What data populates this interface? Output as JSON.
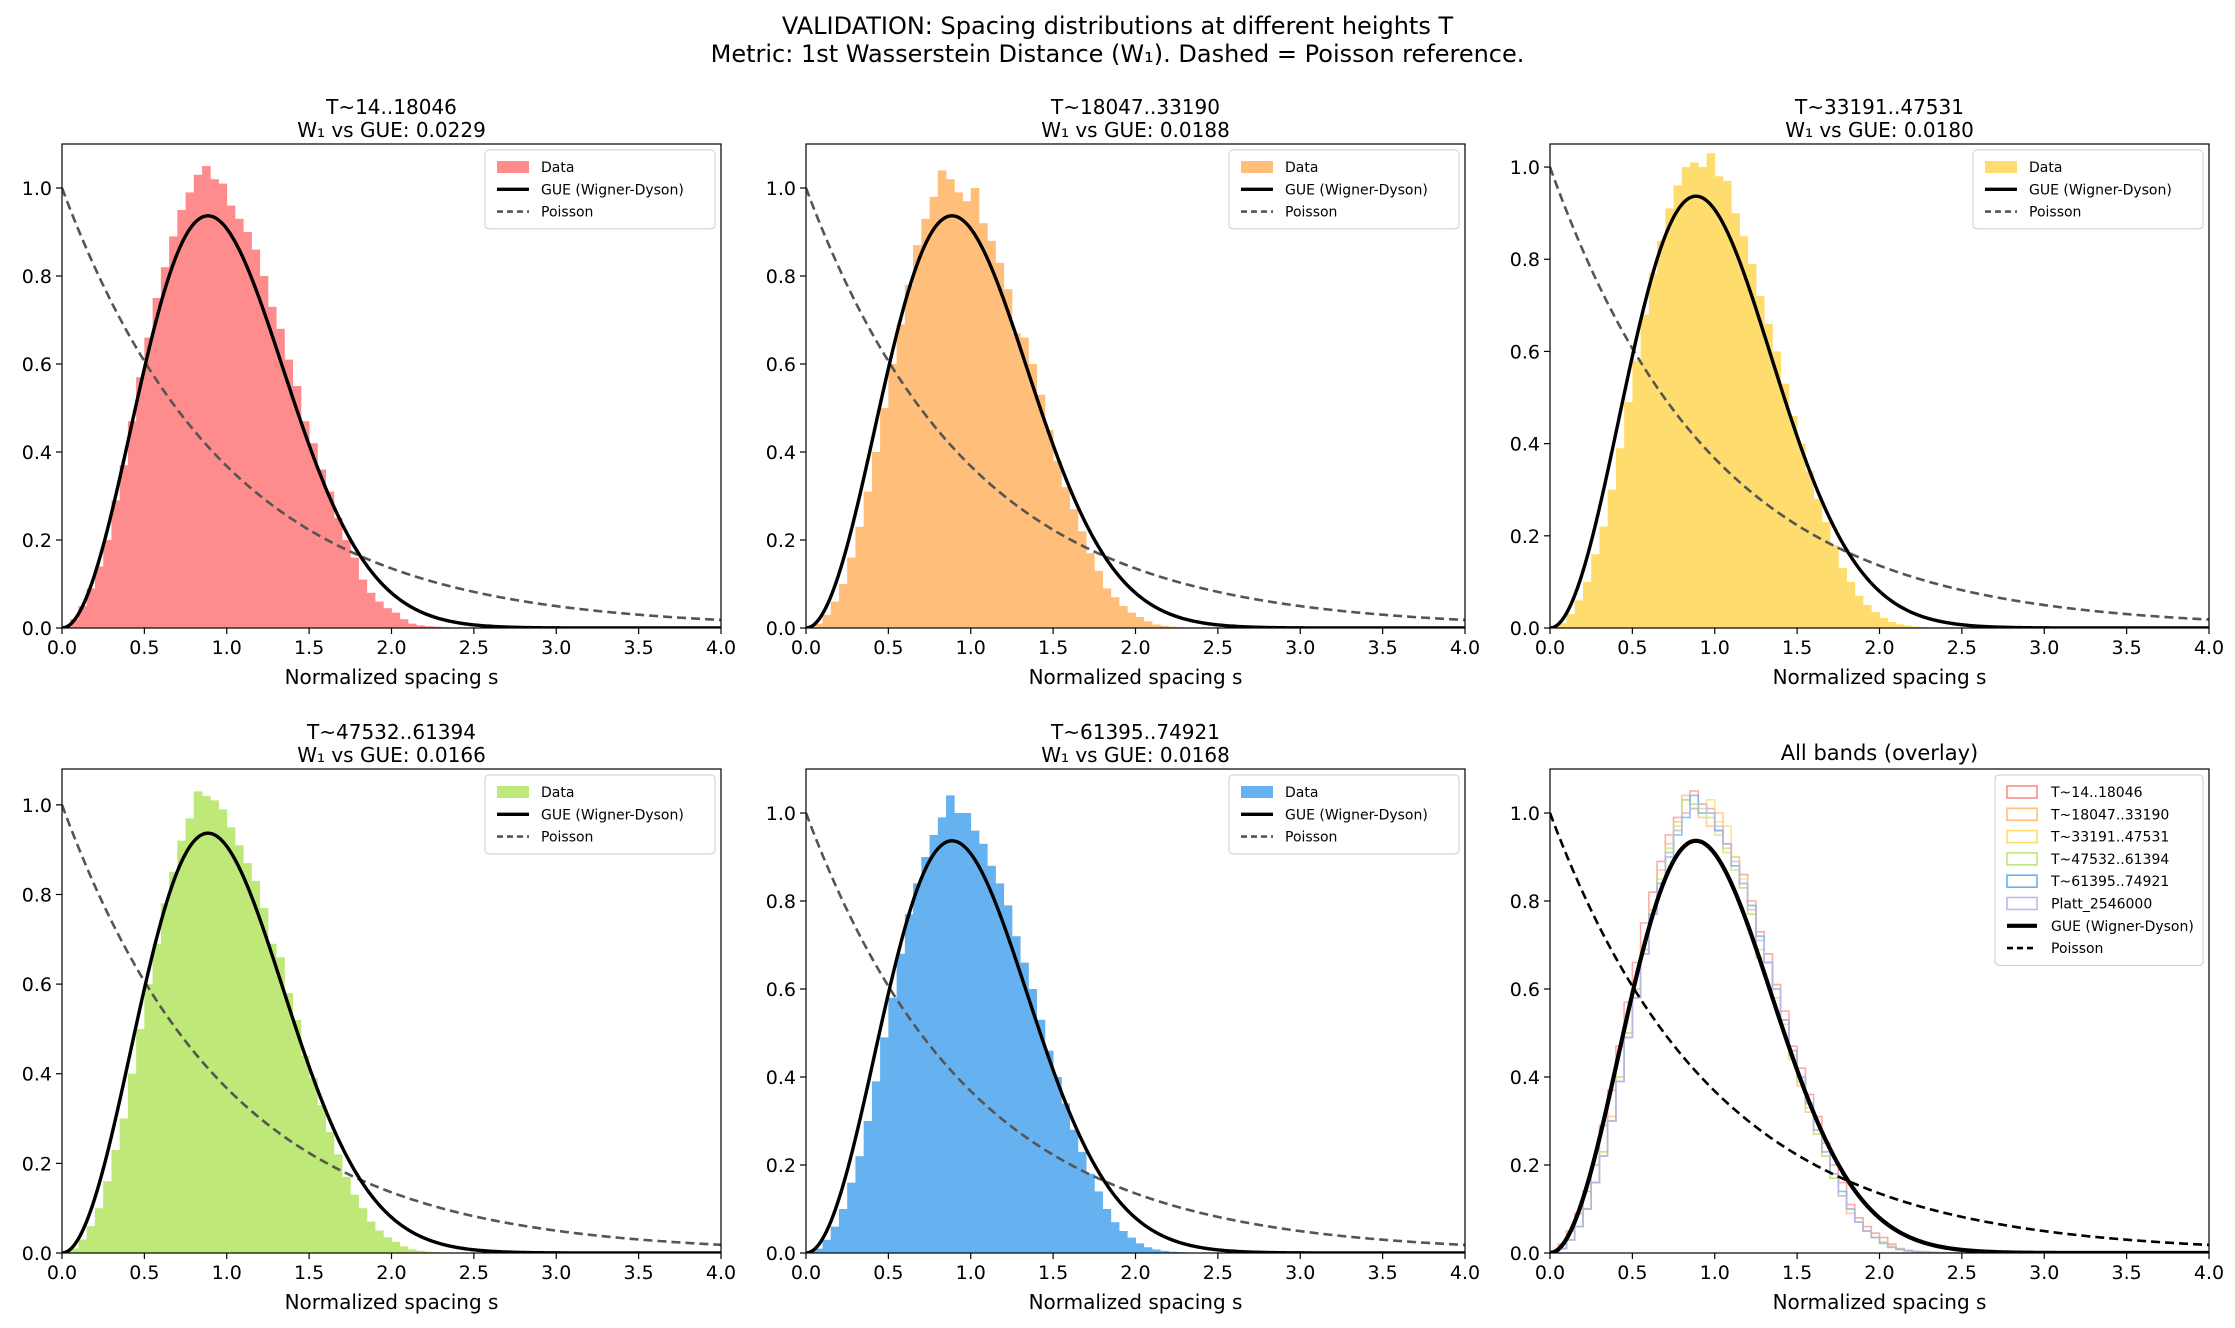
{
  "figure": {
    "suptitle_line1": "VALIDATION: Spacing distributions at different heights T",
    "suptitle_line2": "Metric: 1st Wasserstein Distance (W₁). Dashed = Poisson reference."
  },
  "chart_data": [
    {
      "type": "histogram",
      "title": "T~14..18046",
      "subtitle": "W₁ vs GUE: 0.0229",
      "xlabel": "Normalized spacing s",
      "ylabel": "",
      "xlim": [
        0,
        4
      ],
      "ylim": [
        0,
        1.1
      ],
      "xticks": [
        "0.0",
        "0.5",
        "1.0",
        "1.5",
        "2.0",
        "2.5",
        "3.0",
        "3.5",
        "4.0"
      ],
      "yticks": [
        "0.0",
        "0.2",
        "0.4",
        "0.6",
        "0.8",
        "1.0"
      ],
      "legend": [
        "Data",
        "GUE (Wigner-Dyson)",
        "Poisson"
      ],
      "legend_position": "upper right",
      "color": "#ff8c8c",
      "series": [
        {
          "name": "Data",
          "type": "histogram",
          "bin_width": 0.05,
          "density": [
            0.005,
            0.02,
            0.05,
            0.09,
            0.14,
            0.2,
            0.29,
            0.37,
            0.47,
            0.57,
            0.66,
            0.75,
            0.82,
            0.89,
            0.95,
            0.99,
            1.03,
            1.05,
            1.02,
            1.01,
            0.96,
            0.93,
            0.9,
            0.86,
            0.8,
            0.73,
            0.68,
            0.61,
            0.55,
            0.47,
            0.42,
            0.36,
            0.31,
            0.25,
            0.2,
            0.16,
            0.11,
            0.08,
            0.06,
            0.045,
            0.035,
            0.02,
            0.01,
            0.006,
            0.004,
            0.003,
            0.002,
            0.001,
            0.0,
            0.0
          ]
        },
        {
          "name": "GUE (Wigner-Dyson)",
          "type": "line",
          "formula": "32/pi^2 * s^2 * exp(-4 s^2 / pi)"
        },
        {
          "name": "Poisson",
          "type": "line",
          "formula": "exp(-s)",
          "style": "dashed"
        }
      ]
    },
    {
      "type": "histogram",
      "title": "T~18047..33190",
      "subtitle": "W₁ vs GUE: 0.0188",
      "xlabel": "Normalized spacing s",
      "ylabel": "",
      "xlim": [
        0,
        4
      ],
      "ylim": [
        0,
        1.1
      ],
      "xticks": [
        "0.0",
        "0.5",
        "1.0",
        "1.5",
        "2.0",
        "2.5",
        "3.0",
        "3.5",
        "4.0"
      ],
      "yticks": [
        "0.0",
        "0.2",
        "0.4",
        "0.6",
        "0.8",
        "1.0"
      ],
      "legend": [
        "Data",
        "GUE (Wigner-Dyson)",
        "Poisson"
      ],
      "legend_position": "upper right",
      "color": "#ffbe7a",
      "series": [
        {
          "name": "Data",
          "type": "histogram",
          "bin_width": 0.05,
          "density": [
            0.003,
            0.01,
            0.03,
            0.06,
            0.1,
            0.16,
            0.23,
            0.31,
            0.4,
            0.5,
            0.6,
            0.69,
            0.78,
            0.87,
            0.93,
            0.98,
            1.04,
            1.02,
            0.99,
            0.97,
            1.0,
            0.92,
            0.88,
            0.83,
            0.77,
            0.67,
            0.66,
            0.6,
            0.53,
            0.45,
            0.38,
            0.32,
            0.27,
            0.22,
            0.17,
            0.13,
            0.09,
            0.07,
            0.05,
            0.035,
            0.025,
            0.015,
            0.008,
            0.005,
            0.003,
            0.002,
            0.001,
            0.0,
            0.0,
            0.0
          ]
        },
        {
          "name": "GUE (Wigner-Dyson)",
          "type": "line",
          "formula": "32/pi^2 * s^2 * exp(-4 s^2 / pi)"
        },
        {
          "name": "Poisson",
          "type": "line",
          "formula": "exp(-s)",
          "style": "dashed"
        }
      ]
    },
    {
      "type": "histogram",
      "title": "T~33191..47531",
      "subtitle": "W₁ vs GUE: 0.0180",
      "xlabel": "Normalized spacing s",
      "ylabel": "",
      "xlim": [
        0,
        4
      ],
      "ylim": [
        0,
        1.05
      ],
      "xticks": [
        "0.0",
        "0.5",
        "1.0",
        "1.5",
        "2.0",
        "2.5",
        "3.0",
        "3.5",
        "4.0"
      ],
      "yticks": [
        "0.0",
        "0.2",
        "0.4",
        "0.6",
        "0.8",
        "1.0"
      ],
      "legend": [
        "Data",
        "GUE (Wigner-Dyson)",
        "Poisson"
      ],
      "legend_position": "upper right",
      "color": "#ffdc6e",
      "series": [
        {
          "name": "Data",
          "type": "histogram",
          "bin_width": 0.05,
          "density": [
            0.003,
            0.01,
            0.03,
            0.06,
            0.1,
            0.16,
            0.22,
            0.3,
            0.39,
            0.49,
            0.58,
            0.68,
            0.77,
            0.84,
            0.91,
            0.96,
            1.0,
            1.01,
            1.0,
            1.03,
            0.98,
            0.97,
            0.9,
            0.85,
            0.79,
            0.72,
            0.66,
            0.6,
            0.53,
            0.46,
            0.4,
            0.34,
            0.28,
            0.23,
            0.18,
            0.13,
            0.1,
            0.07,
            0.05,
            0.035,
            0.022,
            0.013,
            0.008,
            0.005,
            0.003,
            0.002,
            0.001,
            0.0,
            0.0,
            0.0
          ]
        },
        {
          "name": "GUE (Wigner-Dyson)",
          "type": "line",
          "formula": "32/pi^2 * s^2 * exp(-4 s^2 / pi)"
        },
        {
          "name": "Poisson",
          "type": "line",
          "formula": "exp(-s)",
          "style": "dashed"
        }
      ]
    },
    {
      "type": "histogram",
      "title": "T~47532..61394",
      "subtitle": "W₁ vs GUE: 0.0166",
      "xlabel": "Normalized spacing s",
      "ylabel": "",
      "xlim": [
        0,
        4
      ],
      "ylim": [
        0,
        1.08
      ],
      "xticks": [
        "0.0",
        "0.5",
        "1.0",
        "1.5",
        "2.0",
        "2.5",
        "3.0",
        "3.5",
        "4.0"
      ],
      "yticks": [
        "0.0",
        "0.2",
        "0.4",
        "0.6",
        "0.8",
        "1.0"
      ],
      "legend": [
        "Data",
        "GUE (Wigner-Dyson)",
        "Poisson"
      ],
      "legend_position": "upper right",
      "color": "#bee878",
      "series": [
        {
          "name": "Data",
          "type": "histogram",
          "bin_width": 0.05,
          "density": [
            0.003,
            0.01,
            0.03,
            0.06,
            0.1,
            0.16,
            0.23,
            0.3,
            0.4,
            0.5,
            0.6,
            0.69,
            0.78,
            0.85,
            0.92,
            0.97,
            1.03,
            1.02,
            1.01,
            0.99,
            0.95,
            0.91,
            0.87,
            0.83,
            0.77,
            0.69,
            0.66,
            0.58,
            0.52,
            0.44,
            0.39,
            0.33,
            0.27,
            0.22,
            0.17,
            0.13,
            0.1,
            0.07,
            0.05,
            0.035,
            0.025,
            0.015,
            0.008,
            0.005,
            0.003,
            0.002,
            0.001,
            0.0,
            0.0,
            0.0
          ]
        },
        {
          "name": "GUE (Wigner-Dyson)",
          "type": "line",
          "formula": "32/pi^2 * s^2 * exp(-4 s^2 / pi)"
        },
        {
          "name": "Poisson",
          "type": "line",
          "formula": "exp(-s)",
          "style": "dashed"
        }
      ]
    },
    {
      "type": "histogram",
      "title": "T~61395..74921",
      "subtitle": "W₁ vs GUE: 0.0168",
      "xlabel": "Normalized spacing s",
      "ylabel": "",
      "xlim": [
        0,
        4
      ],
      "ylim": [
        0,
        1.1
      ],
      "xticks": [
        "0.0",
        "0.5",
        "1.0",
        "1.5",
        "2.0",
        "2.5",
        "3.0",
        "3.5",
        "4.0"
      ],
      "yticks": [
        "0.0",
        "0.2",
        "0.4",
        "0.6",
        "0.8",
        "1.0"
      ],
      "legend": [
        "Data",
        "GUE (Wigner-Dyson)",
        "Poisson"
      ],
      "legend_position": "upper right",
      "color": "#66b2f0",
      "series": [
        {
          "name": "Data",
          "type": "histogram",
          "bin_width": 0.05,
          "density": [
            0.003,
            0.01,
            0.03,
            0.06,
            0.1,
            0.16,
            0.22,
            0.3,
            0.39,
            0.49,
            0.58,
            0.68,
            0.77,
            0.84,
            0.9,
            0.95,
            0.99,
            1.04,
            1.0,
            1.0,
            0.96,
            0.93,
            0.88,
            0.84,
            0.79,
            0.72,
            0.66,
            0.6,
            0.53,
            0.46,
            0.4,
            0.34,
            0.28,
            0.23,
            0.18,
            0.14,
            0.1,
            0.07,
            0.05,
            0.035,
            0.022,
            0.013,
            0.008,
            0.005,
            0.003,
            0.002,
            0.001,
            0.0,
            0.0,
            0.0
          ]
        },
        {
          "name": "GUE (Wigner-Dyson)",
          "type": "line",
          "formula": "32/pi^2 * s^2 * exp(-4 s^2 / pi)"
        },
        {
          "name": "Poisson",
          "type": "line",
          "formula": "exp(-s)",
          "style": "dashed"
        }
      ]
    },
    {
      "type": "histogram",
      "title": "All bands (overlay)",
      "subtitle": "",
      "xlabel": "Normalized spacing s",
      "ylabel": "",
      "xlim": [
        0,
        4
      ],
      "ylim": [
        0,
        1.1
      ],
      "xticks": [
        "0.0",
        "0.5",
        "1.0",
        "1.5",
        "2.0",
        "2.5",
        "3.0",
        "3.5",
        "4.0"
      ],
      "yticks": [
        "0.0",
        "0.2",
        "0.4",
        "0.6",
        "0.8",
        "1.0"
      ],
      "legend": [
        "T~14..18046",
        "T~18047..33190",
        "T~33191..47531",
        "T~47532..61394",
        "T~61395..74921",
        "Platt_2546000",
        "GUE (Wigner-Dyson)",
        "Poisson"
      ],
      "legend_position": "upper right",
      "overlay_colors": [
        "#ff8c8c",
        "#ffbe7a",
        "#ffdc6e",
        "#bee878",
        "#66b2f0",
        "#c8b4e6"
      ],
      "series": [
        {
          "name": "T~14..18046",
          "type": "step"
        },
        {
          "name": "T~18047..33190",
          "type": "step"
        },
        {
          "name": "T~33191..47531",
          "type": "step"
        },
        {
          "name": "T~47532..61394",
          "type": "step"
        },
        {
          "name": "T~61395..74921",
          "type": "step"
        },
        {
          "name": "Platt_2546000",
          "type": "step",
          "density": [
            0.003,
            0.01,
            0.03,
            0.06,
            0.1,
            0.16,
            0.22,
            0.3,
            0.39,
            0.49,
            0.58,
            0.68,
            0.77,
            0.84,
            0.91,
            0.96,
            1.0,
            1.01,
            1.02,
            1.0,
            0.97,
            0.93,
            0.89,
            0.84,
            0.78,
            0.71,
            0.66,
            0.6,
            0.53,
            0.46,
            0.4,
            0.34,
            0.28,
            0.23,
            0.18,
            0.13,
            0.1,
            0.07,
            0.05,
            0.035,
            0.022,
            0.013,
            0.008,
            0.005,
            0.003,
            0.002,
            0.001,
            0.0,
            0.0,
            0.0
          ]
        },
        {
          "name": "GUE (Wigner-Dyson)",
          "type": "line",
          "formula": "32/pi^2 * s^2 * exp(-4 s^2 / pi)"
        },
        {
          "name": "Poisson",
          "type": "line",
          "formula": "exp(-s)",
          "style": "dashed"
        }
      ]
    }
  ]
}
